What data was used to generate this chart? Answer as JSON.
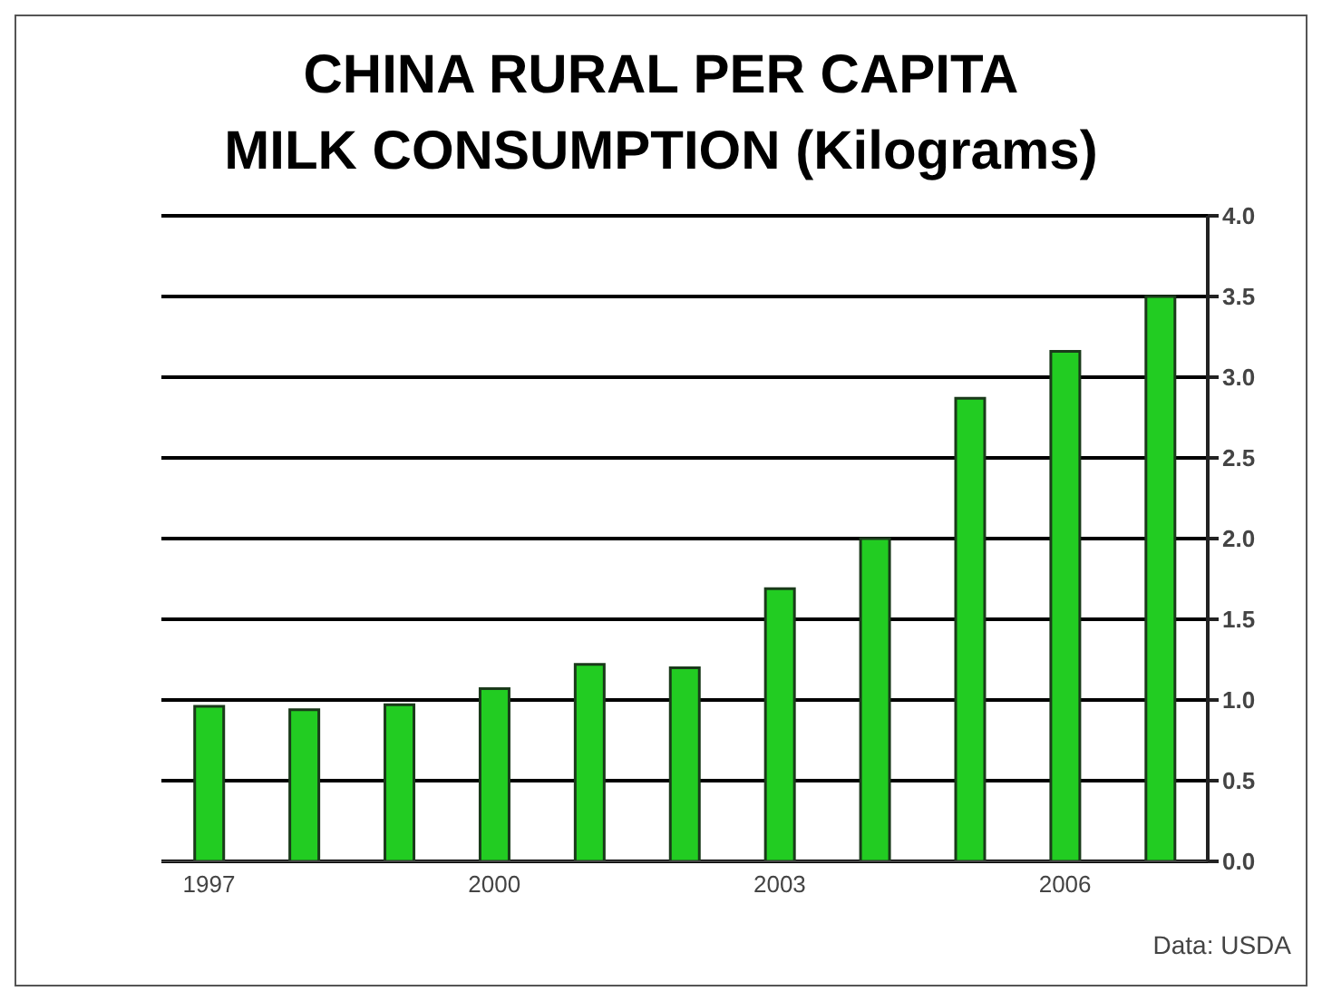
{
  "chart_data": {
    "type": "bar",
    "title": "CHINA RURAL PER CAPITA\nMILK CONSUMPTION (Kilograms)",
    "categories": [
      "1997",
      null,
      null,
      "2000",
      null,
      null,
      "2003",
      null,
      null,
      "2006",
      null
    ],
    "values": [
      0.96,
      0.94,
      0.97,
      1.07,
      1.22,
      1.2,
      1.69,
      2.0,
      2.87,
      3.16,
      3.5
    ],
    "color": "#22cc22",
    "ylim": [
      0,
      4
    ],
    "yticks": [
      {
        "value": 0,
        "label": "0.0"
      },
      {
        "value": 0.5,
        "label": "0.5"
      },
      {
        "value": 1,
        "label": "1.0"
      },
      {
        "value": 1.5,
        "label": "1.5"
      },
      {
        "value": 2,
        "label": "2.0"
      },
      {
        "value": 2.5,
        "label": "2.5"
      },
      {
        "value": 3,
        "label": "3.0"
      },
      {
        "value": 3.5,
        "label": "3.5"
      },
      {
        "value": 4,
        "label": "4.0"
      }
    ],
    "grid": "y",
    "annotations": [
      "Data: USDA"
    ]
  }
}
